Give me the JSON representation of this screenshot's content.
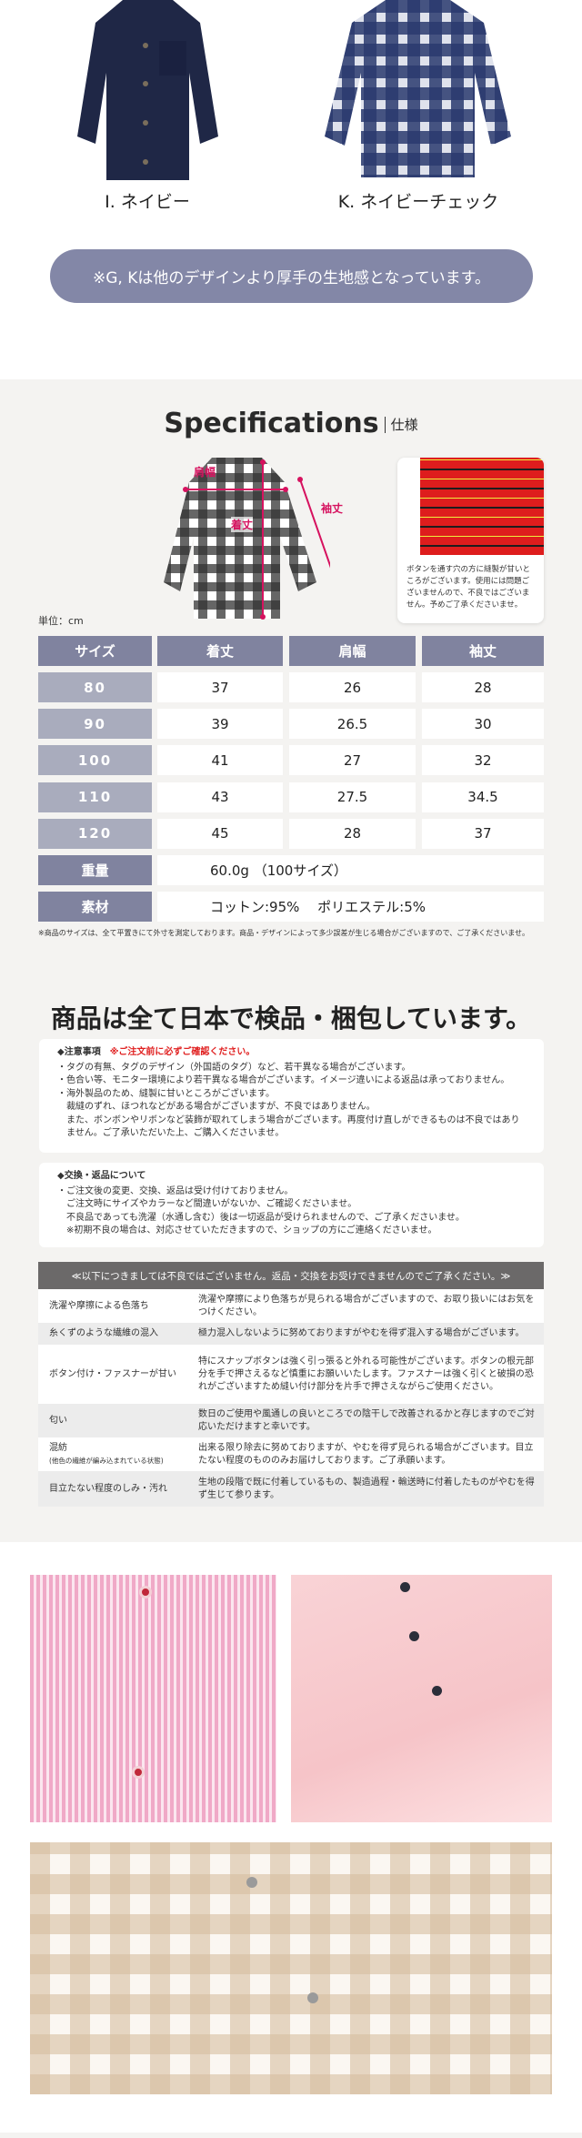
{
  "variants": [
    {
      "label": "I. ネイビー",
      "color": "#1f2746"
    },
    {
      "label": "K. ネイビーチェック",
      "color": "#2a3a6e"
    }
  ],
  "thickness_note": "※G, Kは他のデザインより厚手の生地感となっています。",
  "specs": {
    "title": "Specifications",
    "subtitle": "仕様",
    "diagram_labels": {
      "shoulder": "肩幅",
      "length": "着丈",
      "sleeve": "袖丈"
    },
    "sewing_note": "ボタンを通す穴の方に縫製が甘いところがございます。使用には問題ございませんので、不良ではございません。予めご了承くださいませ。",
    "unit": "単位：cm",
    "headers": [
      "サイズ",
      "着丈",
      "肩幅",
      "袖丈"
    ],
    "rows": [
      [
        "80",
        "37",
        "26",
        "28"
      ],
      [
        "90",
        "39",
        "26.5",
        "30"
      ],
      [
        "100",
        "41",
        "27",
        "32"
      ],
      [
        "110",
        "43",
        "27.5",
        "34.5"
      ],
      [
        "120",
        "45",
        "28",
        "37"
      ]
    ],
    "weight_label": "重量",
    "weight_value": "60.0g （100サイズ）",
    "material_label": "素材",
    "material_value": "コットン:95%　 ポリエステル:5%",
    "footnote": "※商品のサイズは、全て平置きにて外寸を測定しております。商品・デザインによって多少誤差が生じる場合がございますので、ご了承くださいませ。",
    "accent": "#d6125f"
  },
  "inspection": {
    "heading": "商品は全て日本で検品・梱包しています。",
    "caution_title": "◆注意事項",
    "caution_red": "※ご注文前に必ずご確認ください。",
    "caution_items": [
      "・タグの有無、タグのデザイン（外国語のタグ）など、若干異なる場合がございます。",
      "・色合い等、モニター環境により若干異なる場合がございます。イメージ違いによる返品は承っておりません。",
      "・海外製品のため、縫製に甘いところがございます。",
      "裁縫のずれ、ほつれなどがある場合がございますが、不良ではありません。",
      "また、ボンボンやリボンなど装飾が取れてしまう場合がございます。再度付け直しができるものは不良ではありません。ご了承いただいた上、ご購入くださいませ。"
    ],
    "exchange_title": "◆交換・返品について",
    "exchange_items": [
      "・ご注文後の変更、交換、返品は受け付けておりません。",
      "ご注文時にサイズやカラーなど間違いがないか、ご確認くださいませ。",
      "不良品であっても洗濯（水通し含む）後は一切返品が受けられませんので、ご了承くださいませ。",
      "※初期不良の場合は、対応させていただきますので、ショップの方にご連絡くださいませ。"
    ],
    "table_header": "≪以下につきましては不良ではございません。返品・交換をお受けできませんのでご了承ください。≫",
    "table_rows": [
      {
        "label": "洗濯や摩擦による色落ち",
        "sub": "",
        "text": "洗濯や摩擦により色落ちが見られる場合がございますので、お取り扱いにはお気をつけください。"
      },
      {
        "label": "糸くずのような繊維の混入",
        "sub": "",
        "text": "極力混入しないように努めておりますがやむを得ず混入する場合がございます。"
      },
      {
        "label": "ボタン付け・ファスナーが甘い",
        "sub": "",
        "text": "特にスナップボタンは強く引っ張ると外れる可能性がございます。ボタンの根元部分を手で押さえるなど慎重にお願いいたします。ファスナーは強く引くと破損の恐れがございますため縫い付け部分を片手で押さえながらご使用ください。"
      },
      {
        "label": "匂い",
        "sub": "",
        "text": "数日のご使用や風通しの良いところでの陰干しで改善されるかと存じますのでご対応いただけますと幸いです。"
      },
      {
        "label": "混紡",
        "sub": "(他色の繊維が編み込まれている状態)",
        "text": "出来る限り除去に努めておりますが、やむを得ず見られる場合がございます。目立たない程度のもののみお届けしております。ご了承願います。"
      },
      {
        "label": "目立たない程度のしみ・汚れ",
        "sub": "",
        "text": "生地の段階で既に付着しているもの、製造過程・輸送時に付着したものがやむを得ず生じて参ります。"
      }
    ]
  }
}
